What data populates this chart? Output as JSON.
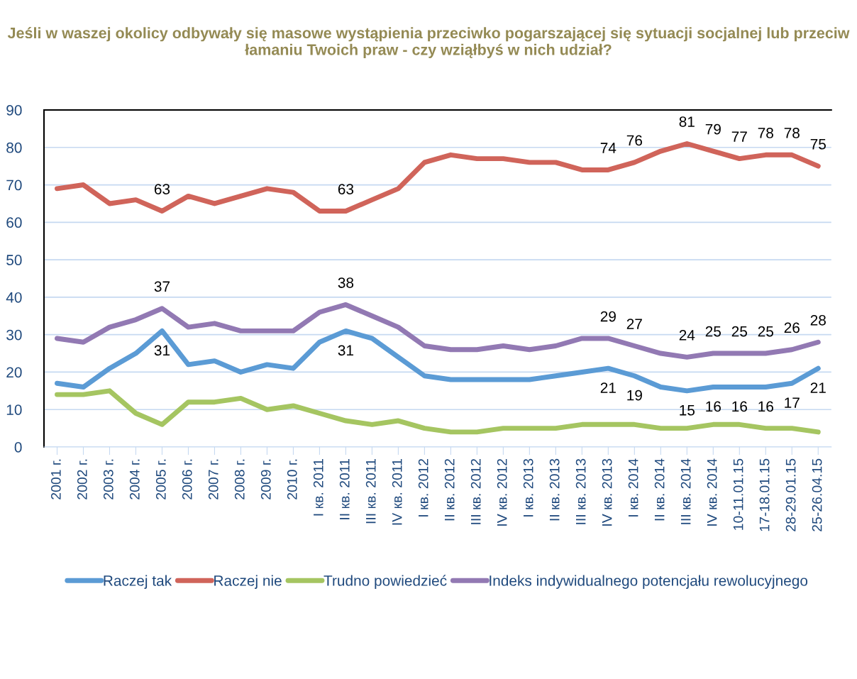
{
  "chart_data": {
    "type": "line",
    "title": "Jeśli w waszej okolicy odbywały się masowe wystąpienia przeciwko pogarszającej się sytuacji socjalnej lub przeciw łamaniu Twoich praw - czy wziąłbyś w nich udział?",
    "categories": [
      "2001 г.",
      "2002 г.",
      "2003 г.",
      "2004 г.",
      "2005 г.",
      "2006 г.",
      "2007 г.",
      "2008 г.",
      "2009 г.",
      "2010 г.",
      "I кв. 2011",
      "II кв. 2011",
      "III кв. 2011",
      "IV кв. 2011",
      "I кв. 2012",
      "II кв. 2012",
      "III кв. 2012",
      "IV кв. 2012",
      "I кв. 2013",
      "II кв. 2013",
      "III кв. 2013",
      "IV кв. 2013",
      "I кв. 2014",
      "II кв. 2014",
      "III кв. 2014",
      "IV кв. 2014",
      "10-11.01.15",
      "17-18.01.15",
      "28-29.01.15",
      "25-26.04.15"
    ],
    "series": [
      {
        "name": "Raczej tak",
        "color": "#5b9bd5",
        "values": [
          17,
          16,
          21,
          25,
          31,
          22,
          23,
          20,
          22,
          21,
          28,
          31,
          29,
          24,
          19,
          18,
          18,
          18,
          18,
          19,
          20,
          21,
          19,
          16,
          15,
          16,
          16,
          16,
          17,
          21
        ],
        "value_labels": [
          null,
          null,
          null,
          null,
          "31",
          null,
          null,
          null,
          null,
          null,
          null,
          "31",
          null,
          null,
          null,
          null,
          null,
          null,
          null,
          null,
          null,
          "21",
          "19",
          null,
          "15",
          "16",
          "16",
          "16",
          "17",
          "21"
        ]
      },
      {
        "name": "Raczej nie",
        "color": "#d0645a",
        "values": [
          69,
          70,
          65,
          66,
          63,
          67,
          65,
          67,
          69,
          68,
          63,
          63,
          66,
          69,
          76,
          78,
          77,
          77,
          76,
          76,
          74,
          74,
          76,
          79,
          81,
          79,
          77,
          78,
          78,
          75
        ],
        "value_labels": [
          null,
          null,
          null,
          null,
          "63",
          null,
          null,
          null,
          null,
          null,
          null,
          "63",
          null,
          null,
          null,
          null,
          null,
          null,
          null,
          null,
          null,
          "74",
          "76",
          null,
          "81",
          "79",
          "77",
          "78",
          "78",
          "75"
        ]
      },
      {
        "name": "Trudno powiedzieć",
        "color": "#a5c561",
        "values": [
          14,
          14,
          15,
          9,
          6,
          12,
          12,
          13,
          10,
          11,
          9,
          7,
          6,
          7,
          5,
          4,
          4,
          5,
          5,
          5,
          6,
          6,
          6,
          5,
          5,
          6,
          6,
          5,
          5,
          4
        ]
      },
      {
        "name": "Indeks indywidualnego potencjału rewolucyjnego",
        "color": "#9279b3",
        "values": [
          29,
          28,
          32,
          34,
          37,
          32,
          33,
          31,
          31,
          31,
          36,
          38,
          35,
          32,
          27,
          26,
          26,
          27,
          26,
          27,
          29,
          29,
          27,
          25,
          24,
          25,
          25,
          25,
          26,
          28
        ],
        "value_labels": [
          null,
          null,
          null,
          null,
          "37",
          null,
          null,
          null,
          null,
          null,
          null,
          "38",
          null,
          null,
          null,
          null,
          null,
          null,
          null,
          null,
          null,
          "29",
          "27",
          null,
          "24",
          "25",
          "25",
          "25",
          "26",
          "28"
        ]
      }
    ],
    "ylim": [
      0,
      90
    ],
    "yticks": [
      0,
      10,
      20,
      30,
      40,
      50,
      60,
      70,
      80,
      90
    ],
    "grid": "y",
    "legend": "bottom",
    "line_style": "solid",
    "marker": "none"
  }
}
